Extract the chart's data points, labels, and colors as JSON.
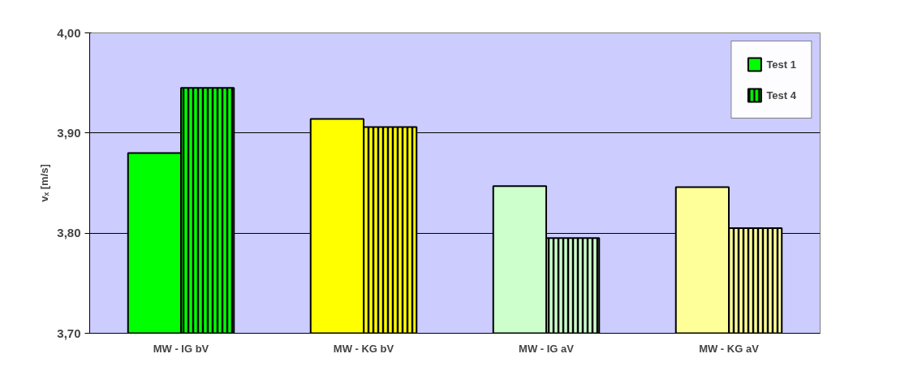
{
  "chart_data": {
    "type": "bar",
    "ylabel": "vₓ [m/s]",
    "categories": [
      "MW - IG bV",
      "MW - KG bV",
      "MW - IG aV",
      "MW - KG aV"
    ],
    "series": [
      {
        "name": "Test 1",
        "colors": [
          "#00ff00",
          "#ffff00",
          "#ccffcc",
          "#ffff99"
        ],
        "values": [
          3.88,
          3.914,
          3.847,
          3.846
        ]
      },
      {
        "name": "Test 4",
        "colors": [
          "#00ff00",
          "#ffff00",
          "#ccffcc",
          "#ffff99"
        ],
        "values": [
          3.945,
          3.906,
          3.795,
          3.805
        ]
      }
    ],
    "ylim": [
      3.7,
      4.0
    ],
    "yticks": [
      {
        "value": 3.7,
        "label": "3,70"
      },
      {
        "value": 3.8,
        "label": "3,80"
      },
      {
        "value": 3.9,
        "label": "3,90"
      },
      {
        "value": 4.0,
        "label": "4,00"
      }
    ],
    "grid": "y",
    "legend": "top right"
  }
}
